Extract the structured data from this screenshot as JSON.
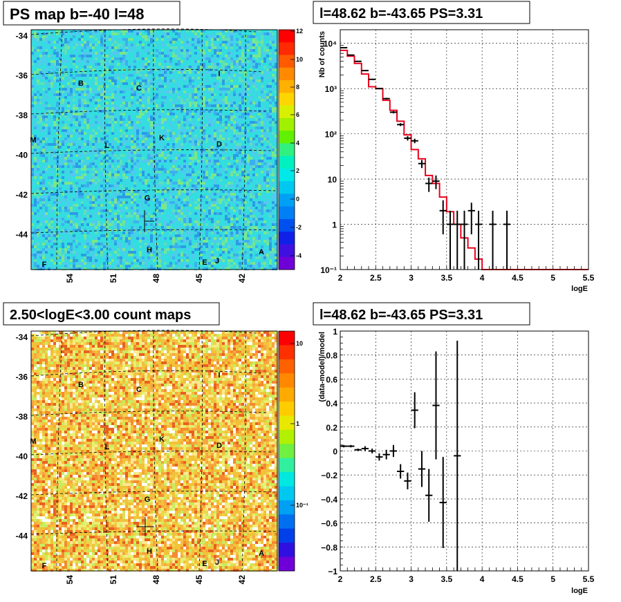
{
  "panels": {
    "top_left_title": "PS map b=-40 l=48",
    "top_right_title": "l=48.62 b=-43.65 PS=3.31",
    "bottom_left_title": "2.50<logE<3.00 count maps",
    "bottom_right_title": "l=48.62 b=-43.65 PS=3.31"
  },
  "maps": {
    "y_ticks": [
      "-34",
      "-36",
      "-38",
      "-40",
      "-42",
      "-44"
    ],
    "x_ticks": [
      "54",
      "51",
      "48",
      "45",
      "42"
    ],
    "source_labels": [
      "B",
      "C",
      "I",
      "M",
      "L",
      "K",
      "D",
      "G",
      "H",
      "A",
      "F",
      "E",
      "J"
    ],
    "ps_colorbar_ticks": [
      "12",
      "10",
      "8",
      "6",
      "4",
      "2",
      "0",
      "-2",
      "-4"
    ],
    "count_colorbar_ticks": [
      "10",
      "1",
      "10⁻¹"
    ],
    "colors": {
      "ps_background": "#33dde0",
      "count_background": "#f2c23a",
      "grid": "#000000"
    }
  },
  "chart_data": [
    {
      "type": "line",
      "title": "l=48.62 b=-43.65 PS=3.31",
      "xlabel": "logE",
      "ylabel": "Nb of counts",
      "xlim": [
        2,
        5.5
      ],
      "ylim": [
        0.1,
        20000
      ],
      "yscale": "log",
      "grid": true,
      "x_ticks": [
        "2",
        "2.5",
        "3",
        "3.5",
        "4",
        "4.5",
        "5",
        "5.5"
      ],
      "y_ticks": [
        "10⁻¹",
        "1",
        "10",
        "10²",
        "10³",
        "10⁴"
      ],
      "series": [
        {
          "kind": "data",
          "color": "#000000",
          "x": [
            2.05,
            2.15,
            2.25,
            2.35,
            2.45,
            2.55,
            2.65,
            2.75,
            2.85,
            2.95,
            3.05,
            3.15,
            3.25,
            3.35,
            3.45,
            3.55,
            3.65,
            3.75,
            3.85,
            3.95,
            4.15,
            4.35
          ],
          "y": [
            8000,
            5500,
            4000,
            2500,
            1600,
            1000,
            600,
            300,
            160,
            80,
            70,
            22,
            8,
            9,
            2,
            1,
            1,
            1,
            2,
            1,
            1,
            1
          ],
          "yerr_low": [
            90,
            74,
            63,
            50,
            40,
            31,
            24,
            17,
            12,
            9,
            8,
            4.5,
            2.8,
            3,
            1.4,
            0.9,
            0.9,
            0.9,
            1.4,
            0.9,
            0.9,
            0.9
          ],
          "yerr_high": [
            90,
            74,
            63,
            50,
            40,
            31,
            24,
            17,
            12,
            9,
            8,
            4.5,
            2.8,
            3,
            1.4,
            1,
            1,
            1,
            1,
            1,
            1,
            1
          ]
        },
        {
          "kind": "model",
          "color": "#e8001c",
          "edges": [
            2.0,
            2.1,
            2.2,
            2.3,
            2.4,
            2.5,
            2.6,
            2.7,
            2.8,
            2.9,
            3.0,
            3.1,
            3.2,
            3.3,
            3.4,
            3.5,
            3.6,
            3.7,
            3.8,
            3.9,
            4.0,
            5.5
          ],
          "values": [
            7000,
            5200,
            3600,
            2100,
            1100,
            1000,
            550,
            330,
            190,
            95,
            45,
            28,
            12,
            8,
            4,
            1.9,
            1,
            0.5,
            0.3,
            0.17,
            0.1
          ]
        }
      ]
    },
    {
      "type": "scatter",
      "title": "l=48.62 b=-43.65 PS=3.31",
      "xlabel": "logE",
      "ylabel": "(data-model)/model",
      "xlim": [
        2,
        5.5
      ],
      "ylim": [
        -1,
        1
      ],
      "grid": true,
      "x_ticks": [
        "2",
        "2.5",
        "3",
        "3.5",
        "4",
        "4.5",
        "5",
        "5.5"
      ],
      "y_ticks": [
        "−1",
        "−0.8",
        "−0.6",
        "−0.4",
        "−0.2",
        "0",
        "0.2",
        "0.4",
        "0.6",
        "0.8",
        "1"
      ],
      "series": [
        {
          "kind": "residual",
          "color": "#000000",
          "x": [
            2.05,
            2.15,
            2.25,
            2.35,
            2.45,
            2.55,
            2.65,
            2.75,
            2.85,
            2.95,
            3.05,
            3.15,
            3.25,
            3.35,
            3.45,
            3.65
          ],
          "y": [
            0.04,
            0.04,
            0.01,
            0.02,
            0.0,
            -0.05,
            -0.03,
            0.0,
            -0.17,
            -0.25,
            0.34,
            -0.15,
            -0.37,
            0.38,
            -0.43,
            -0.04
          ],
          "yerr": [
            0.01,
            0.01,
            0.01,
            0.02,
            0.02,
            0.03,
            0.04,
            0.05,
            0.06,
            0.07,
            0.15,
            0.15,
            0.22,
            0.45,
            0.38,
            0.96
          ]
        }
      ]
    }
  ]
}
